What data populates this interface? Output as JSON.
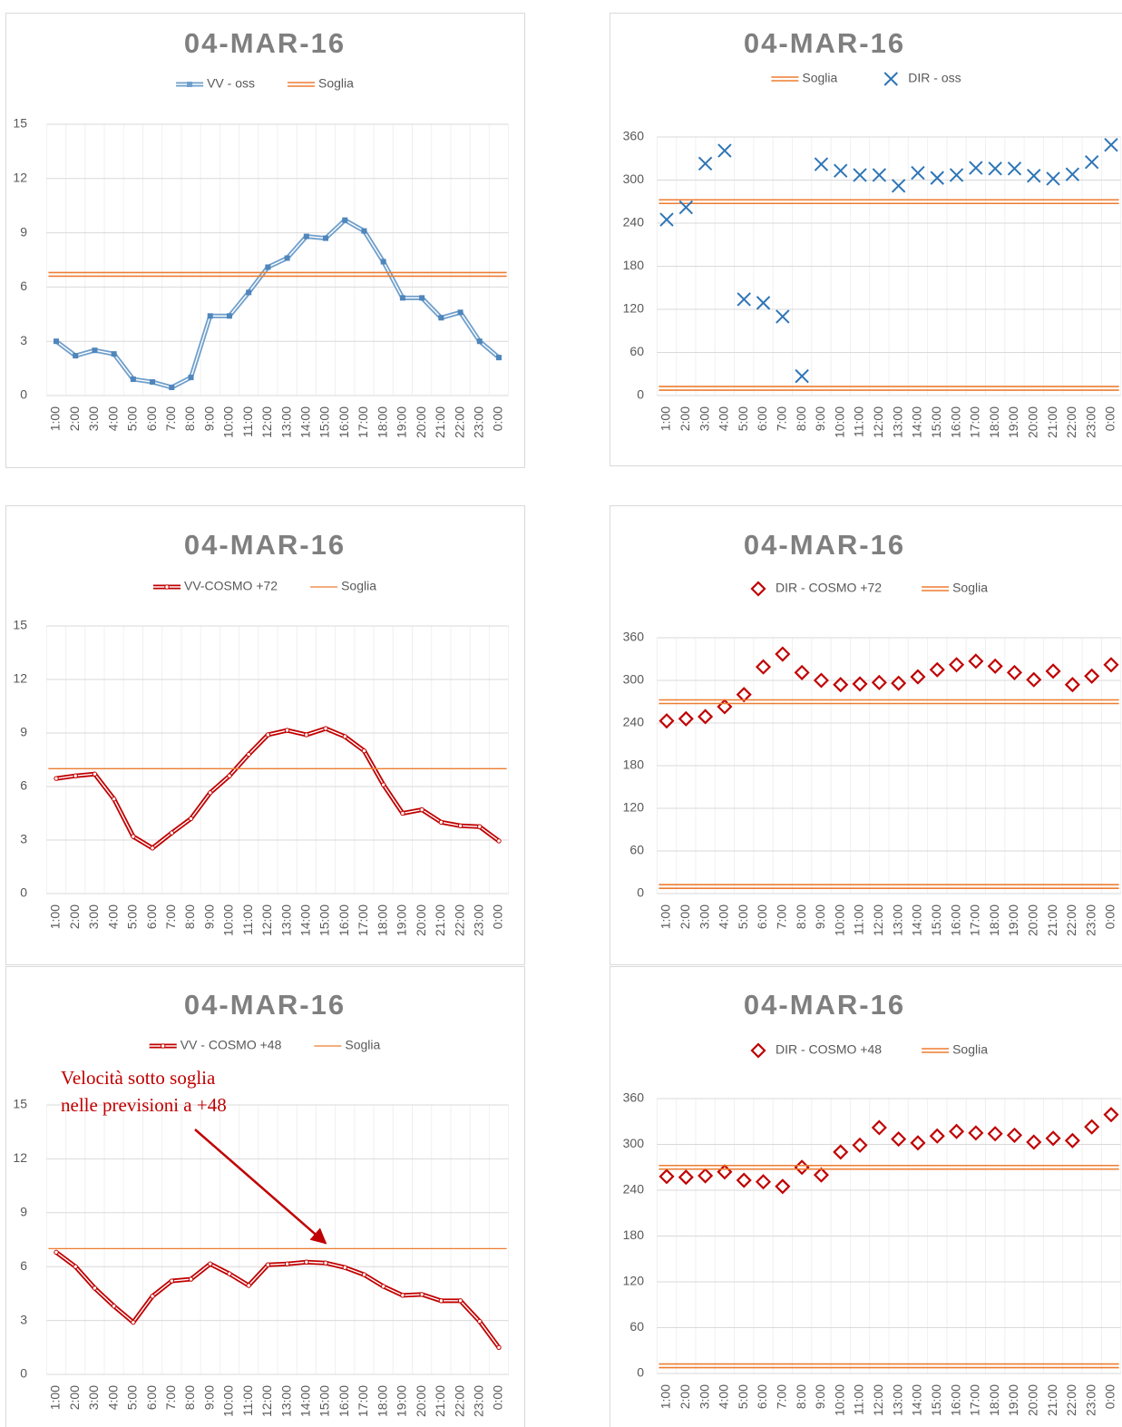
{
  "chart_data": [
    {
      "type": "line",
      "title": "04-MAR-16",
      "categories": [
        "1:00",
        "2:00",
        "3:00",
        "4:00",
        "5:00",
        "6:00",
        "7:00",
        "8:00",
        "9:00",
        "10:00",
        "11:00",
        "12:00",
        "13:00",
        "14:00",
        "15:00",
        "16:00",
        "17:00",
        "18:00",
        "19:00",
        "20:00",
        "21:00",
        "22:00",
        "23:00",
        "0:00"
      ],
      "series": [
        {
          "name": "VV - oss",
          "color": "#6f9fcb",
          "marker": "square",
          "values": [
            3.0,
            2.2,
            2.5,
            2.3,
            0.9,
            0.75,
            0.45,
            1.0,
            4.4,
            4.4,
            5.7,
            7.1,
            7.6,
            8.8,
            8.7,
            9.7,
            9.1,
            7.4,
            5.4,
            5.4,
            4.3,
            4.6,
            3.0,
            2.1
          ]
        },
        {
          "name": "Soglia",
          "color": "#ed7d31",
          "line_style": "double",
          "threshold": [
            6.7
          ]
        }
      ],
      "ylim": [
        0,
        15
      ],
      "yticks": [
        0,
        3,
        6,
        9,
        12,
        15
      ],
      "grid": true
    },
    {
      "type": "scatter",
      "title": "04-MAR-16",
      "categories": [
        "1:00",
        "2:00",
        "3:00",
        "4:00",
        "5:00",
        "6:00",
        "7:00",
        "8:00",
        "9:00",
        "10:00",
        "11:00",
        "12:00",
        "13:00",
        "14:00",
        "15:00",
        "16:00",
        "17:00",
        "18:00",
        "19:00",
        "20:00",
        "21:00",
        "22:00",
        "23:00",
        "0:00"
      ],
      "series": [
        {
          "name": "Soglia",
          "color": "#ed7d31",
          "line_style": "double",
          "threshold": [
            270,
            10
          ]
        },
        {
          "name": "DIR - oss",
          "color": "#2e75b6",
          "marker": "x",
          "values": [
            245,
            262,
            323,
            341,
            134,
            129,
            110,
            27,
            322,
            313,
            307,
            307,
            292,
            310,
            303,
            307,
            317,
            316,
            316,
            306,
            302,
            308,
            325,
            349
          ]
        }
      ],
      "ylim": [
        0,
        360
      ],
      "yticks": [
        0,
        60,
        120,
        180,
        240,
        300,
        360
      ],
      "grid": true
    },
    {
      "type": "line",
      "title": "04-MAR-16",
      "categories": [
        "1:00",
        "2:00",
        "3:00",
        "4:00",
        "5:00",
        "6:00",
        "7:00",
        "8:00",
        "9:00",
        "10:00",
        "11:00",
        "12:00",
        "13:00",
        "14:00",
        "15:00",
        "16:00",
        "17:00",
        "18:00",
        "19:00",
        "20:00",
        "21:00",
        "22:00",
        "23:00",
        "0:00"
      ],
      "series": [
        {
          "name": "VV-COSMO +72",
          "color": "#c00000",
          "marker": "dot",
          "values": [
            6.45,
            6.6,
            6.7,
            5.3,
            3.2,
            2.55,
            3.4,
            4.2,
            5.65,
            6.6,
            7.8,
            8.9,
            9.15,
            8.9,
            9.25,
            8.8,
            8.0,
            6.1,
            4.5,
            4.7,
            4.0,
            3.8,
            3.75,
            2.95
          ]
        },
        {
          "name": "Soglia",
          "color": "#ed7d31",
          "line_style": "single",
          "threshold": [
            7
          ]
        }
      ],
      "ylim": [
        0,
        15
      ],
      "yticks": [
        0,
        3,
        6,
        9,
        12,
        15
      ],
      "grid": true
    },
    {
      "type": "scatter",
      "title": "04-MAR-16",
      "categories": [
        "1:00",
        "2:00",
        "3:00",
        "4:00",
        "5:00",
        "6:00",
        "7:00",
        "8:00",
        "9:00",
        "10:00",
        "11:00",
        "12:00",
        "13:00",
        "14:00",
        "15:00",
        "16:00",
        "17:00",
        "18:00",
        "19:00",
        "20:00",
        "21:00",
        "22:00",
        "23:00",
        "0:00"
      ],
      "series": [
        {
          "name": "DIR - COSMO +72",
          "color": "#c00000",
          "marker": "diamond",
          "values": [
            243,
            246,
            249,
            263,
            280,
            319,
            337,
            311,
            300,
            294,
            295,
            297,
            296,
            305,
            315,
            322,
            327,
            320,
            311,
            301,
            313,
            294,
            306,
            322
          ]
        },
        {
          "name": "Soglia",
          "color": "#ed7d31",
          "line_style": "double",
          "threshold": [
            270,
            10
          ]
        }
      ],
      "ylim": [
        0,
        360
      ],
      "yticks": [
        0,
        60,
        120,
        180,
        240,
        300,
        360
      ],
      "grid": true
    },
    {
      "type": "line",
      "title": "04-MAR-16",
      "categories": [
        "1:00",
        "2:00",
        "3:00",
        "4:00",
        "5:00",
        "6:00",
        "7:00",
        "8:00",
        "9:00",
        "10:00",
        "11:00",
        "12:00",
        "13:00",
        "14:00",
        "15:00",
        "16:00",
        "17:00",
        "18:00",
        "19:00",
        "20:00",
        "21:00",
        "22:00",
        "23:00",
        "0:00"
      ],
      "series": [
        {
          "name": "VV - COSMO +48",
          "color": "#c00000",
          "marker": "dot",
          "values": [
            6.8,
            6.0,
            4.8,
            3.8,
            2.9,
            4.35,
            5.2,
            5.3,
            6.15,
            5.6,
            4.95,
            6.1,
            6.15,
            6.25,
            6.2,
            5.95,
            5.55,
            4.9,
            4.4,
            4.45,
            4.1,
            4.1,
            2.95,
            1.5
          ]
        },
        {
          "name": "Soglia",
          "color": "#ed7d31",
          "line_style": "single",
          "threshold": [
            7
          ]
        }
      ],
      "annotation": [
        "Velocità sotto soglia",
        "nelle previsioni a +48"
      ],
      "ylim": [
        0,
        15
      ],
      "yticks": [
        0,
        3,
        6,
        9,
        12,
        15
      ],
      "grid": true
    },
    {
      "type": "scatter",
      "title": "04-MAR-16",
      "categories": [
        "1:00",
        "2:00",
        "3:00",
        "4:00",
        "5:00",
        "6:00",
        "7:00",
        "8:00",
        "9:00",
        "10:00",
        "11:00",
        "12:00",
        "13:00",
        "14:00",
        "15:00",
        "16:00",
        "17:00",
        "18:00",
        "19:00",
        "20:00",
        "21:00",
        "22:00",
        "23:00",
        "0:00"
      ],
      "series": [
        {
          "name": "DIR - COSMO +48",
          "color": "#c00000",
          "marker": "diamond",
          "values": [
            258,
            257,
            259,
            264,
            253,
            251,
            245,
            270,
            260,
            290,
            299,
            322,
            307,
            302,
            311,
            317,
            315,
            314,
            312,
            303,
            308,
            305,
            323,
            339
          ]
        },
        {
          "name": "Soglia",
          "color": "#ed7d31",
          "line_style": "double",
          "threshold": [
            270,
            10
          ]
        }
      ],
      "ylim": [
        0,
        360
      ],
      "yticks": [
        0,
        60,
        120,
        180,
        240,
        300,
        360
      ],
      "grid": true
    }
  ]
}
